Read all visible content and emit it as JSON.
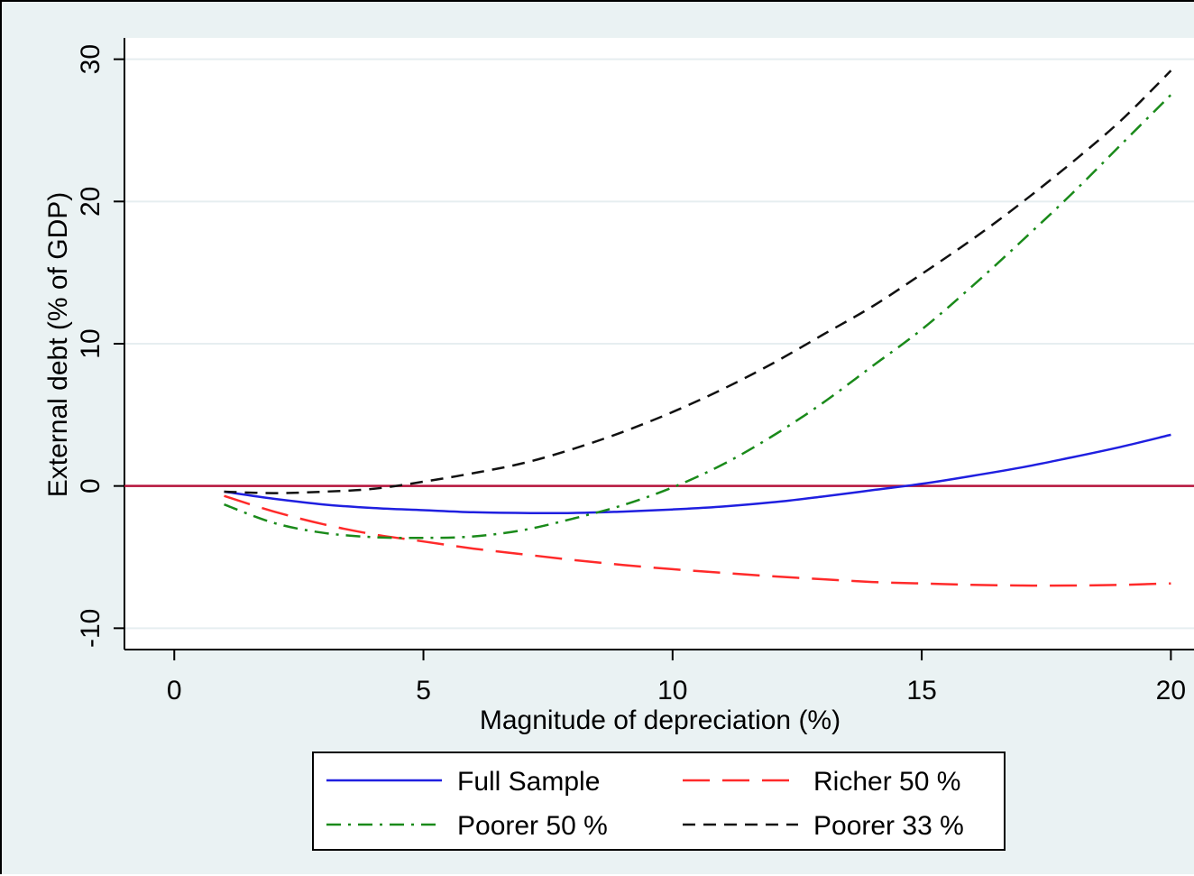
{
  "chart_data": {
    "type": "line",
    "xlabel": "Magnitude of depreciation (%)",
    "ylabel": "External debt (% of GDP)",
    "xlim": [
      -1,
      20.5
    ],
    "ylim": [
      -11.5,
      31.5
    ],
    "xticks": [
      0,
      5,
      10,
      15,
      20
    ],
    "yticks": [
      -10,
      0,
      10,
      20,
      30
    ],
    "x_tick_labels": [
      "0",
      "5",
      "10",
      "15",
      "20"
    ],
    "y_tick_labels": [
      "-10",
      "0",
      "10",
      "20",
      "30"
    ],
    "grid": true,
    "reference_line": {
      "y": 0,
      "color": "#b5123a"
    },
    "legend": {
      "placement": "bottom",
      "columns": 2
    },
    "x": [
      1,
      2,
      3,
      4,
      5,
      6,
      7,
      8,
      9,
      10,
      11,
      12,
      13,
      14,
      15,
      16,
      17,
      18,
      19,
      20
    ],
    "series": [
      {
        "name": "Full Sample",
        "color": "#1f1fe0",
        "style": "solid",
        "values": [
          -0.4,
          -0.9,
          -1.3,
          -1.55,
          -1.7,
          -1.85,
          -1.9,
          -1.9,
          -1.8,
          -1.65,
          -1.45,
          -1.15,
          -0.75,
          -0.3,
          0.15,
          0.7,
          1.3,
          2.0,
          2.75,
          3.6
        ]
      },
      {
        "name": "Richer 50 %",
        "color": "#ff2a2a",
        "style": "longdash",
        "values": [
          -0.7,
          -1.8,
          -2.7,
          -3.4,
          -3.9,
          -4.4,
          -4.8,
          -5.2,
          -5.55,
          -5.85,
          -6.1,
          -6.35,
          -6.55,
          -6.75,
          -6.85,
          -6.95,
          -7.0,
          -7.0,
          -6.95,
          -6.85
        ]
      },
      {
        "name": "Poorer 50 %",
        "color": "#1a8a1a",
        "style": "dashdot",
        "values": [
          -1.3,
          -2.6,
          -3.3,
          -3.6,
          -3.65,
          -3.55,
          -3.1,
          -2.3,
          -1.35,
          -0.1,
          1.5,
          3.5,
          5.8,
          8.4,
          11.0,
          14.0,
          17.2,
          20.5,
          24.0,
          27.5
        ]
      },
      {
        "name": "Poorer 33 %",
        "color": "#111111",
        "style": "shortdash",
        "values": [
          -0.4,
          -0.5,
          -0.4,
          -0.2,
          0.3,
          0.9,
          1.6,
          2.6,
          3.8,
          5.2,
          6.8,
          8.6,
          10.6,
          12.6,
          14.9,
          17.3,
          19.9,
          22.7,
          25.7,
          29.2
        ]
      }
    ]
  }
}
